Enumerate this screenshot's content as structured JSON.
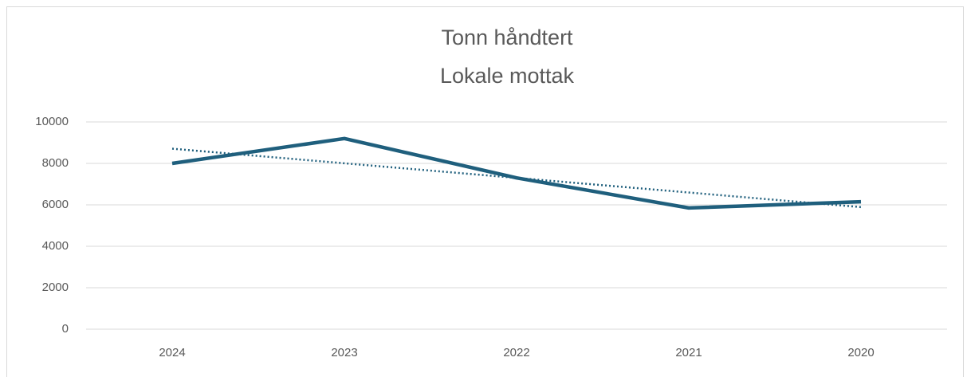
{
  "chart_data": {
    "type": "line",
    "title": [
      "Tonn håndtert",
      "Lokale mottak"
    ],
    "categories": [
      "2024",
      "2023",
      "2022",
      "2021",
      "2020"
    ],
    "series": [
      {
        "color": "#1f5f7d",
        "values": [
          8000,
          9200,
          7300,
          5850,
          6150
        ]
      }
    ],
    "trendline": "linear",
    "ylim": [
      0,
      10000
    ],
    "yticks": [
      0,
      2000,
      4000,
      6000,
      8000,
      10000
    ],
    "grid": true
  }
}
